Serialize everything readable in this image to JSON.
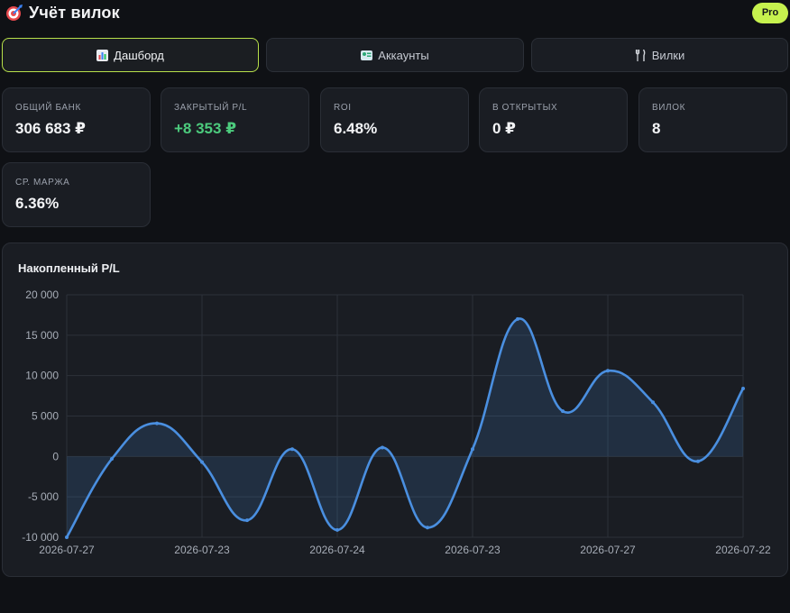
{
  "header": {
    "title": "Учёт вилок",
    "badge": "Pro"
  },
  "tabs": [
    {
      "label": "Дашборд",
      "icon": "bar-chart-icon",
      "active": true
    },
    {
      "label": "Аккаунты",
      "icon": "account-card-icon",
      "active": false
    },
    {
      "label": "Вилки",
      "icon": "fork-knife-icon",
      "active": false
    }
  ],
  "stats": [
    {
      "label": "Общий банк",
      "value": "306 683 ₽"
    },
    {
      "label": "Закрытый P/L",
      "value": "+8 353 ₽",
      "positive": true
    },
    {
      "label": "ROI",
      "value": "6.48%"
    },
    {
      "label": "В открытых",
      "value": "0 ₽"
    },
    {
      "label": "Вилок",
      "value": "8"
    },
    {
      "label": "Ср. маржа",
      "value": "6.36%"
    }
  ],
  "colors": {
    "accent": "#c6f24e",
    "line": "#4a8fe0",
    "positive": "#4ccb7d"
  },
  "chart_data": {
    "type": "line",
    "title": "Накопленный P/L",
    "x": [
      "2026-07-27",
      "",
      "",
      "2026-07-23",
      "",
      "",
      "2026-07-24",
      "",
      "",
      "2026-07-23",
      "",
      "",
      "2026-07-27",
      "",
      "",
      "2026-07-22"
    ],
    "xticks": [
      "2026-07-27",
      "2026-07-23",
      "2026-07-24",
      "2026-07-23",
      "2026-07-27",
      "2026-07-22"
    ],
    "series": [
      {
        "values": [
          -10000,
          -300,
          4100,
          -700,
          -7900,
          900,
          -9100,
          1100,
          -8800,
          900,
          17000,
          5600,
          10600,
          6700,
          -600,
          8400
        ]
      }
    ],
    "ylim": [
      -10000,
      20000
    ],
    "yticks": [
      "20 000",
      "15 000",
      "10 000",
      "5 000",
      "0",
      "-5 000",
      "-10 000"
    ],
    "fill": true,
    "grid": true
  }
}
